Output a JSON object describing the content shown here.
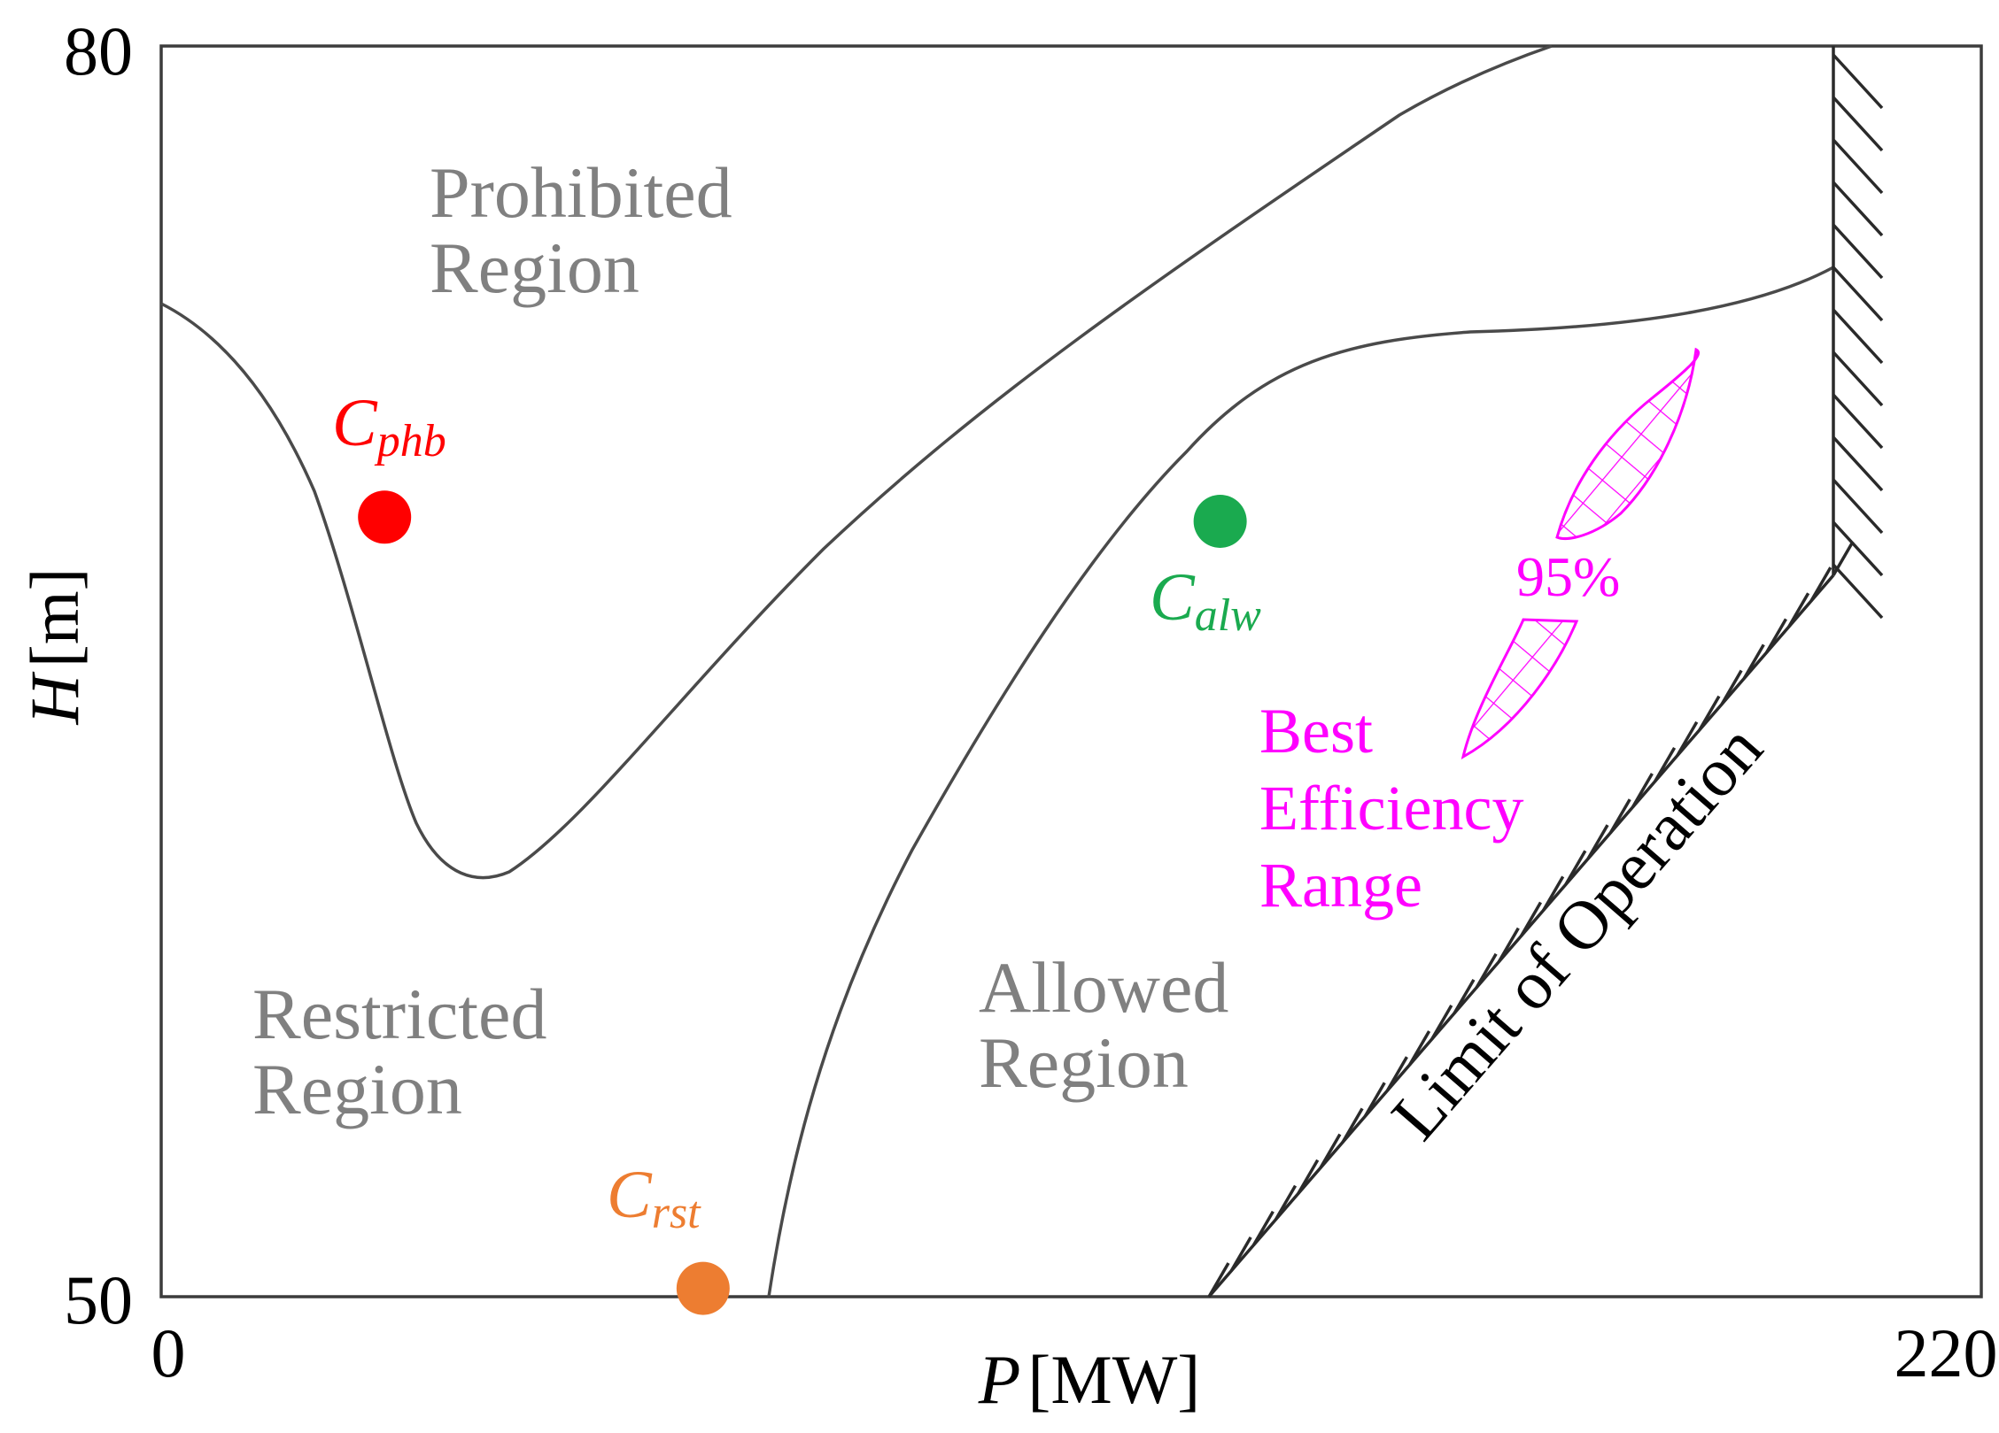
{
  "axes": {
    "x": {
      "label": "P",
      "unit": "[MW]",
      "min_label": "0",
      "max_label": "220",
      "range": [
        0,
        220
      ]
    },
    "y": {
      "label": "H",
      "unit": "[m]",
      "min_label": "50",
      "max_label": "80",
      "range": [
        50,
        80
      ]
    }
  },
  "regions": {
    "prohibited": {
      "line1": "Prohibited",
      "line2": "Region"
    },
    "restricted": {
      "line1": "Restricted",
      "line2": "Region"
    },
    "allowed": {
      "line1": "Allowed",
      "line2": "Region"
    }
  },
  "points": {
    "phb": {
      "base": "C",
      "sub": "phb",
      "color": "#ff0000",
      "P": 27,
      "H": 68.7
    },
    "alw": {
      "base": "C",
      "sub": "alw",
      "color": "#1aaa4f",
      "P": 128,
      "H": 68.6
    },
    "rst": {
      "base": "C",
      "sub": "rst",
      "color": "#ed7d31",
      "P": 65.5,
      "H": 50.2
    }
  },
  "best_efficiency": {
    "percent_label": "95%",
    "line1": "Best",
    "line2": "Efficiency",
    "line3": "Range",
    "color": "#ff00ff"
  },
  "limit": {
    "label": "Limit of Operation"
  }
}
